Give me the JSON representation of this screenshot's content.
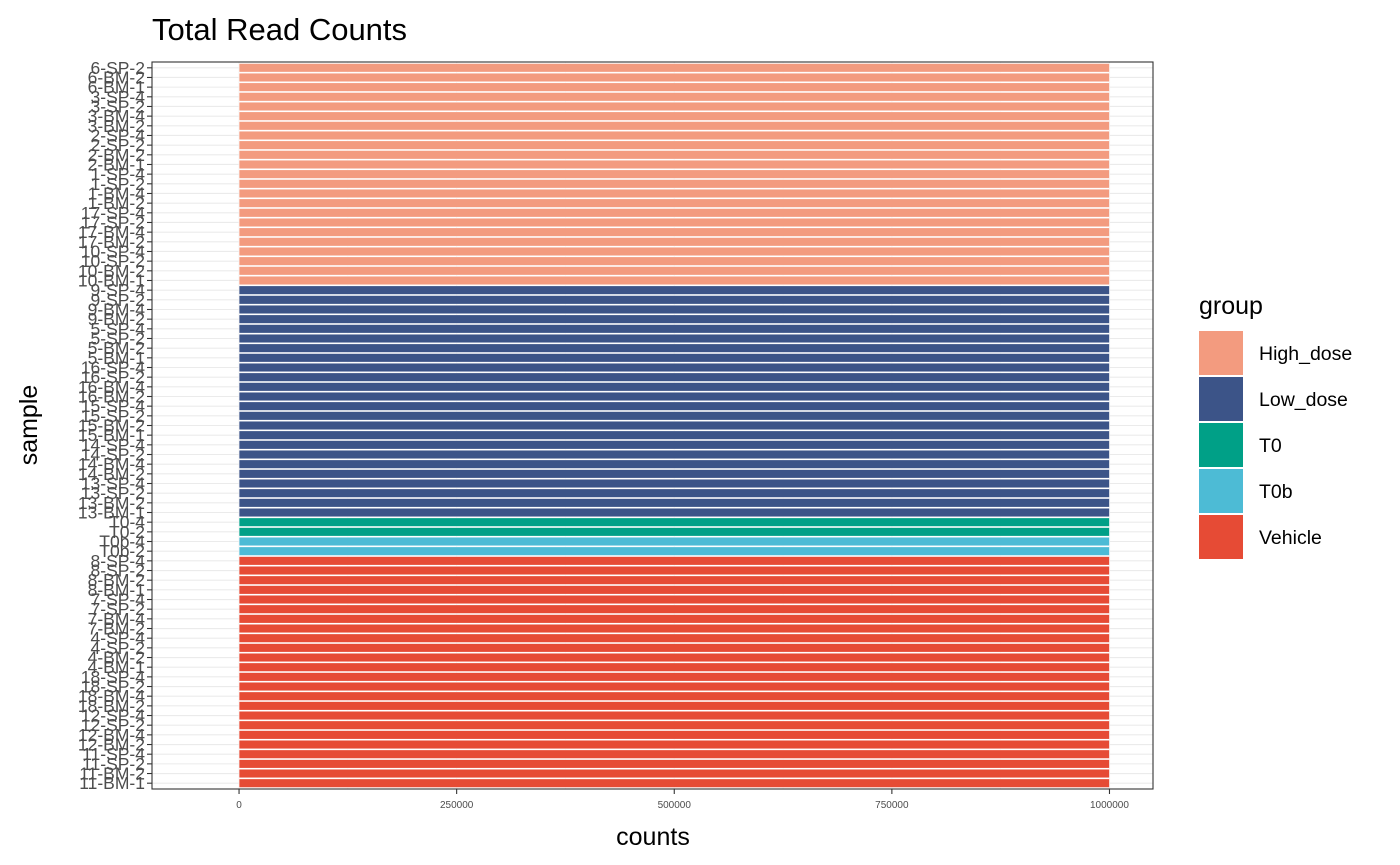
{
  "chart_data": {
    "type": "bar",
    "orientation": "horizontal",
    "title": "Total Read Counts",
    "xlabel": "counts",
    "ylabel": "sample",
    "xlim": [
      -100000,
      1050000
    ],
    "xticks": [
      0,
      250000,
      500000,
      750000,
      1000000
    ],
    "xtick_labels": [
      "0",
      "250000",
      "500000",
      "750000",
      "1000000"
    ],
    "grid": true,
    "legend_position": "right",
    "legend": {
      "title": "group",
      "entries": [
        {
          "label": "High_dose",
          "color": "#F39B7F"
        },
        {
          "label": "Low_dose",
          "color": "#3C5488"
        },
        {
          "label": "T0",
          "color": "#00A087"
        },
        {
          "label": "T0b",
          "color": "#4DBBD5"
        },
        {
          "label": "Vehicle",
          "color": "#E64B35"
        }
      ]
    },
    "samples": [
      {
        "sample": "11-BM-1",
        "group": "Vehicle",
        "count": 1000000
      },
      {
        "sample": "11-BM-2",
        "group": "Vehicle",
        "count": 1000000
      },
      {
        "sample": "11-SP-2",
        "group": "Vehicle",
        "count": 1000000
      },
      {
        "sample": "11-SP-4",
        "group": "Vehicle",
        "count": 1000000
      },
      {
        "sample": "12-BM-2",
        "group": "Vehicle",
        "count": 1000000
      },
      {
        "sample": "12-BM-4",
        "group": "Vehicle",
        "count": 1000000
      },
      {
        "sample": "12-SP-2",
        "group": "Vehicle",
        "count": 1000000
      },
      {
        "sample": "12-SP-4",
        "group": "Vehicle",
        "count": 1000000
      },
      {
        "sample": "18-BM-2",
        "group": "Vehicle",
        "count": 1000000
      },
      {
        "sample": "18-BM-4",
        "group": "Vehicle",
        "count": 1000000
      },
      {
        "sample": "18-SP-2",
        "group": "Vehicle",
        "count": 1000000
      },
      {
        "sample": "18-SP-4",
        "group": "Vehicle",
        "count": 1000000
      },
      {
        "sample": "4-BM-1",
        "group": "Vehicle",
        "count": 1000000
      },
      {
        "sample": "4-BM-2",
        "group": "Vehicle",
        "count": 1000000
      },
      {
        "sample": "4-SP-2",
        "group": "Vehicle",
        "count": 1000000
      },
      {
        "sample": "4-SP-4",
        "group": "Vehicle",
        "count": 1000000
      },
      {
        "sample": "7-BM-2",
        "group": "Vehicle",
        "count": 1000000
      },
      {
        "sample": "7-BM-4",
        "group": "Vehicle",
        "count": 1000000
      },
      {
        "sample": "7-SP-2",
        "group": "Vehicle",
        "count": 1000000
      },
      {
        "sample": "7-SP-4",
        "group": "Vehicle",
        "count": 1000000
      },
      {
        "sample": "8-BM-1",
        "group": "Vehicle",
        "count": 1000000
      },
      {
        "sample": "8-BM-2",
        "group": "Vehicle",
        "count": 1000000
      },
      {
        "sample": "8-SP-2",
        "group": "Vehicle",
        "count": 1000000
      },
      {
        "sample": "8-SP-4",
        "group": "Vehicle",
        "count": 1000000
      },
      {
        "sample": "T0b-2",
        "group": "T0b",
        "count": 1000000
      },
      {
        "sample": "T0b-4",
        "group": "T0b",
        "count": 1000000
      },
      {
        "sample": "T0-2",
        "group": "T0",
        "count": 1000000
      },
      {
        "sample": "T0-4",
        "group": "T0",
        "count": 1000000
      },
      {
        "sample": "13-BM-1",
        "group": "Low_dose",
        "count": 1000000
      },
      {
        "sample": "13-BM-2",
        "group": "Low_dose",
        "count": 1000000
      },
      {
        "sample": "13-SP-2",
        "group": "Low_dose",
        "count": 1000000
      },
      {
        "sample": "13-SP-4",
        "group": "Low_dose",
        "count": 1000000
      },
      {
        "sample": "14-BM-2",
        "group": "Low_dose",
        "count": 1000000
      },
      {
        "sample": "14-BM-4",
        "group": "Low_dose",
        "count": 1000000
      },
      {
        "sample": "14-SP-2",
        "group": "Low_dose",
        "count": 1000000
      },
      {
        "sample": "14-SP-4",
        "group": "Low_dose",
        "count": 1000000
      },
      {
        "sample": "15-BM-1",
        "group": "Low_dose",
        "count": 1000000
      },
      {
        "sample": "15-BM-2",
        "group": "Low_dose",
        "count": 1000000
      },
      {
        "sample": "15-SP-2",
        "group": "Low_dose",
        "count": 1000000
      },
      {
        "sample": "15-SP-4",
        "group": "Low_dose",
        "count": 1000000
      },
      {
        "sample": "16-BM-2",
        "group": "Low_dose",
        "count": 1000000
      },
      {
        "sample": "16-BM-4",
        "group": "Low_dose",
        "count": 1000000
      },
      {
        "sample": "16-SP-2",
        "group": "Low_dose",
        "count": 1000000
      },
      {
        "sample": "16-SP-4",
        "group": "Low_dose",
        "count": 1000000
      },
      {
        "sample": "5-BM-1",
        "group": "Low_dose",
        "count": 1000000
      },
      {
        "sample": "5-BM-2",
        "group": "Low_dose",
        "count": 1000000
      },
      {
        "sample": "5-SP-2",
        "group": "Low_dose",
        "count": 1000000
      },
      {
        "sample": "5-SP-4",
        "group": "Low_dose",
        "count": 1000000
      },
      {
        "sample": "9-BM-2",
        "group": "Low_dose",
        "count": 1000000
      },
      {
        "sample": "9-BM-4",
        "group": "Low_dose",
        "count": 1000000
      },
      {
        "sample": "9-SP-2",
        "group": "Low_dose",
        "count": 1000000
      },
      {
        "sample": "9-SP-4",
        "group": "Low_dose",
        "count": 1000000
      },
      {
        "sample": "10-BM-1",
        "group": "High_dose",
        "count": 1000000
      },
      {
        "sample": "10-BM-2",
        "group": "High_dose",
        "count": 1000000
      },
      {
        "sample": "10-SP-2",
        "group": "High_dose",
        "count": 1000000
      },
      {
        "sample": "10-SP-4",
        "group": "High_dose",
        "count": 1000000
      },
      {
        "sample": "17-BM-2",
        "group": "High_dose",
        "count": 1000000
      },
      {
        "sample": "17-BM-4",
        "group": "High_dose",
        "count": 1000000
      },
      {
        "sample": "17-SP-2",
        "group": "High_dose",
        "count": 1000000
      },
      {
        "sample": "17-SP-4",
        "group": "High_dose",
        "count": 1000000
      },
      {
        "sample": "1-BM-2",
        "group": "High_dose",
        "count": 1000000
      },
      {
        "sample": "1-BM-4",
        "group": "High_dose",
        "count": 1000000
      },
      {
        "sample": "1-SP-2",
        "group": "High_dose",
        "count": 1000000
      },
      {
        "sample": "1-SP-4",
        "group": "High_dose",
        "count": 1000000
      },
      {
        "sample": "2-BM-1",
        "group": "High_dose",
        "count": 1000000
      },
      {
        "sample": "2-BM-2",
        "group": "High_dose",
        "count": 1000000
      },
      {
        "sample": "2-SP-2",
        "group": "High_dose",
        "count": 1000000
      },
      {
        "sample": "2-SP-4",
        "group": "High_dose",
        "count": 1000000
      },
      {
        "sample": "3-BM-2",
        "group": "High_dose",
        "count": 1000000
      },
      {
        "sample": "3-BM-4",
        "group": "High_dose",
        "count": 1000000
      },
      {
        "sample": "3-SP-2",
        "group": "High_dose",
        "count": 1000000
      },
      {
        "sample": "3-SP-4",
        "group": "High_dose",
        "count": 1000000
      },
      {
        "sample": "6-BM-1",
        "group": "High_dose",
        "count": 1000000
      },
      {
        "sample": "6-BM-2",
        "group": "High_dose",
        "count": 1000000
      },
      {
        "sample": "6-SP-2",
        "group": "High_dose",
        "count": 1000000
      }
    ]
  }
}
